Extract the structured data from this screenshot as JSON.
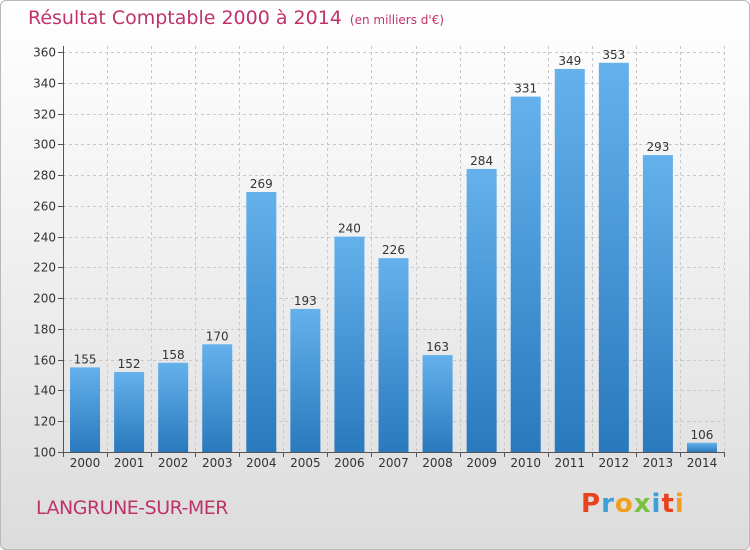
{
  "header": {
    "title": "Résultat Comptable 2000 à 2014",
    "unit": "(en milliers d'€)"
  },
  "footer": {
    "city": "LANGRUNE-SUR-MER",
    "logo": [
      "P",
      "r",
      "o",
      "x",
      "i",
      "t",
      "i"
    ],
    "logo_colors": [
      "#e8421e",
      "#3aa0d8",
      "#f0a020",
      "#7cc242",
      "#3aa0d8",
      "#e8421e",
      "#f0a020"
    ]
  },
  "colors": {
    "title": "#c0336a",
    "bar_light": "#64b1ec",
    "bar_dark": "#2979bd",
    "grid": "#c8c8c8"
  },
  "chart_data": {
    "type": "bar",
    "title": "Résultat Comptable 2000 à 2014",
    "ylabel": "(en milliers d'€)",
    "xlabel": "",
    "categories": [
      "2000",
      "2001",
      "2002",
      "2003",
      "2004",
      "2005",
      "2006",
      "2007",
      "2008",
      "2009",
      "2010",
      "2011",
      "2012",
      "2013",
      "2014"
    ],
    "values": [
      155,
      152,
      158,
      170,
      269,
      193,
      240,
      226,
      163,
      284,
      331,
      349,
      353,
      293,
      106
    ],
    "ylim": [
      100,
      360
    ],
    "yticks": [
      100,
      120,
      140,
      160,
      180,
      200,
      220,
      240,
      260,
      280,
      300,
      320,
      340,
      360
    ],
    "grid": true,
    "legend": "none"
  }
}
